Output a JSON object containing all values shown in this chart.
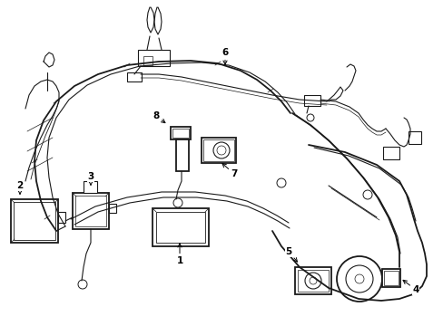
{
  "background_color": "#ffffff",
  "line_color": "#1a1a1a",
  "fig_width": 4.89,
  "fig_height": 3.6,
  "dpi": 100,
  "bumper_outer": {
    "x": [
      0.28,
      0.22,
      0.2,
      0.22,
      0.3,
      0.42,
      0.6,
      0.85,
      1.15,
      1.5,
      1.88,
      2.22,
      2.52,
      2.75,
      2.95,
      3.1,
      3.22
    ],
    "y": [
      2.55,
      2.4,
      2.22,
      2.02,
      1.8,
      1.58,
      1.35,
      1.12,
      0.95,
      0.82,
      0.74,
      0.72,
      0.74,
      0.82,
      0.92,
      1.02,
      1.12
    ]
  },
  "bumper_inner": {
    "x": [
      0.38,
      0.34,
      0.34,
      0.38,
      0.48,
      0.62,
      0.8,
      1.05,
      1.35,
      1.7,
      2.05,
      2.35,
      2.6,
      2.8,
      2.96,
      3.08,
      3.18
    ],
    "y": [
      2.48,
      2.34,
      2.16,
      1.96,
      1.75,
      1.54,
      1.32,
      1.1,
      0.93,
      0.8,
      0.72,
      0.7,
      0.72,
      0.8,
      0.9,
      1.0,
      1.1
    ]
  },
  "bumper_right_upper": {
    "x": [
      3.22,
      3.45,
      3.7,
      3.92,
      4.1,
      4.25,
      4.35,
      4.4,
      4.42,
      4.4,
      4.35
    ],
    "y": [
      1.12,
      1.3,
      1.55,
      1.8,
      2.0,
      2.2,
      2.38,
      2.52,
      2.62,
      2.7,
      2.8
    ]
  },
  "bumper_right_inner": {
    "x": [
      3.18,
      3.38,
      3.62,
      3.84,
      4.02,
      4.16,
      4.26,
      4.32,
      4.34
    ],
    "y": [
      1.1,
      1.28,
      1.52,
      1.76,
      1.96,
      2.16,
      2.34,
      2.48,
      2.58
    ]
  },
  "right_panel_outer": {
    "x": [
      3.92,
      4.05,
      4.18,
      4.28,
      4.35,
      4.4,
      4.42,
      4.45,
      4.48,
      4.5,
      4.52,
      4.55,
      4.58,
      4.6,
      4.62,
      4.65,
      4.68,
      4.7,
      4.72,
      4.74
    ],
    "y": [
      1.8,
      1.95,
      2.1,
      2.22,
      2.35,
      2.5,
      2.6,
      2.68,
      2.75,
      2.8,
      2.82,
      2.83,
      2.82,
      2.8,
      2.78,
      2.75,
      2.72,
      2.68,
      2.62,
      2.55
    ]
  },
  "right_panel_lower": {
    "x": [
      3.92,
      4.05,
      4.18,
      4.3,
      4.42,
      4.52,
      4.6,
      4.68,
      4.74,
      4.8,
      4.85,
      4.89
    ],
    "y": [
      1.8,
      1.7,
      1.62,
      1.55,
      1.5,
      1.48,
      1.48,
      1.5,
      1.55,
      1.6,
      1.68,
      1.78
    ]
  }
}
